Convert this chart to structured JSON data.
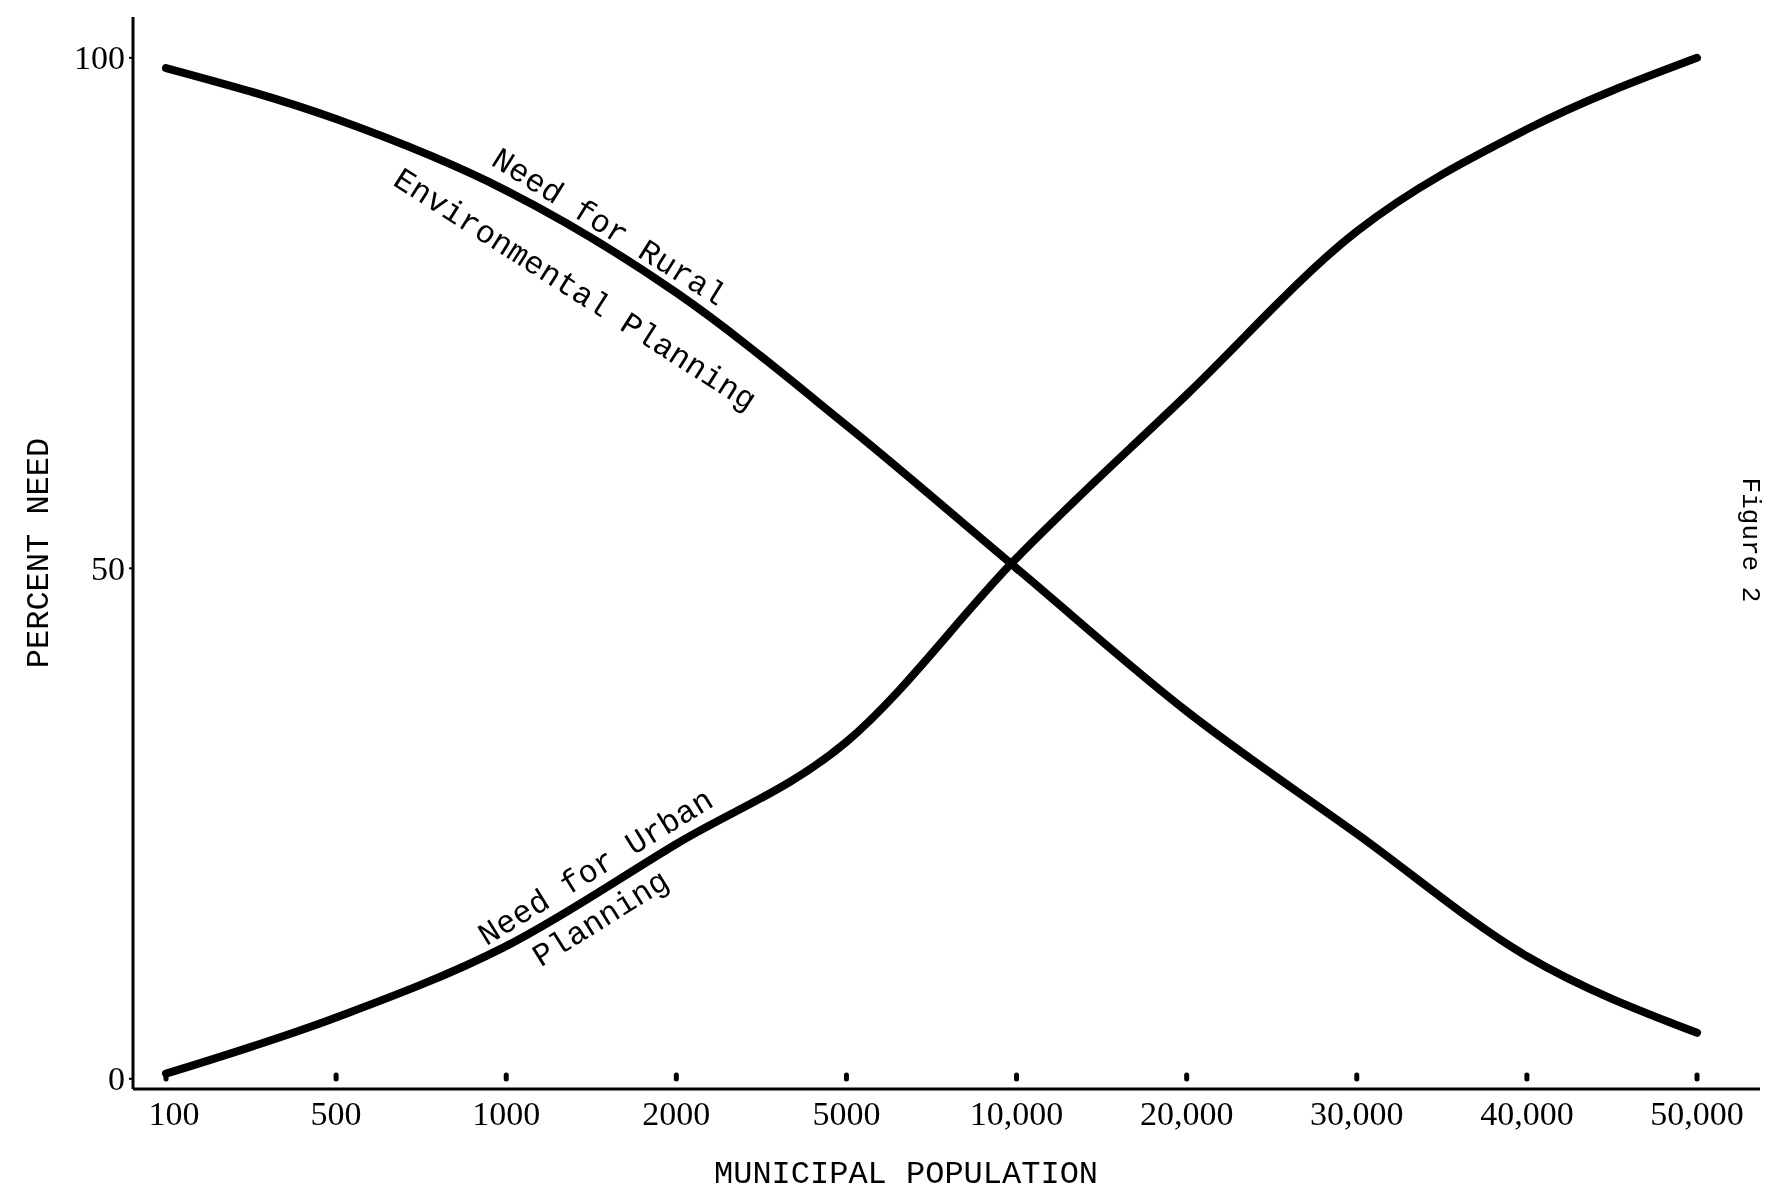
{
  "chart_data": {
    "type": "line",
    "xlabel": "MUNICIPAL POPULATION",
    "ylabel": "PERCENT NEED",
    "categories": [
      "100",
      "500",
      "1000",
      "2000",
      "5000",
      "10,000",
      "20,000",
      "30,000",
      "40,000",
      "50,000"
    ],
    "series": [
      {
        "name": "Need for Rural Environmental Planning",
        "color": "#000000",
        "values": [
          99,
          94,
          87,
          77,
          64,
          50,
          36,
          24,
          12,
          4.5
        ]
      },
      {
        "name": "Need for Urban Planning",
        "color": "#000000",
        "values": [
          0.5,
          6,
          13,
          23,
          33,
          51,
          67,
          83,
          93,
          100
        ]
      }
    ],
    "ylim": [
      -1,
      104
    ],
    "yticks": [
      0,
      50,
      100
    ],
    "grid": false,
    "marker": "none",
    "line_style": "solid",
    "annotations": [
      "Figure 2"
    ]
  }
}
